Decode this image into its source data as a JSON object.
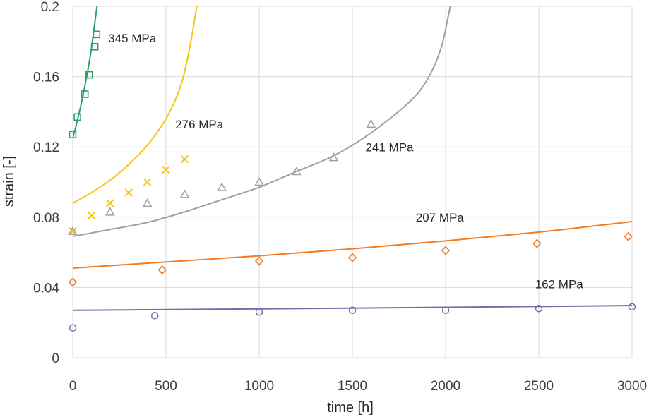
{
  "chart_data": {
    "type": "scatter",
    "title": "",
    "xlabel": "time [h]",
    "ylabel": "strain [-]",
    "xlim": [
      0,
      3000
    ],
    "ylim": [
      0,
      0.2
    ],
    "xticks": [
      0,
      500,
      1000,
      1500,
      2000,
      2500,
      3000
    ],
    "yticks": [
      0,
      0.04,
      0.08,
      0.12,
      0.16,
      0.2
    ],
    "xtick_labels": [
      "0",
      "500",
      "1000",
      "1500",
      "2000",
      "2500",
      "3000"
    ],
    "ytick_labels": [
      "0",
      "0.04",
      "0.08",
      "0.12",
      "0.16",
      "0.2"
    ],
    "grid": true,
    "series": [
      {
        "name": "345 MPa",
        "label": "345 MPa",
        "color": "#2e9e6a",
        "marker": "square",
        "points": [
          [
            0,
            0.127
          ],
          [
            25,
            0.137
          ],
          [
            65,
            0.15
          ],
          [
            88,
            0.161
          ],
          [
            118,
            0.177
          ],
          [
            128,
            0.184
          ]
        ],
        "fit": [
          [
            0,
            0.125
          ],
          [
            20,
            0.133
          ],
          [
            40,
            0.142
          ],
          [
            60,
            0.152
          ],
          [
            80,
            0.163
          ],
          [
            100,
            0.176
          ],
          [
            115,
            0.188
          ],
          [
            130,
            0.2
          ]
        ]
      },
      {
        "name": "276 MPa",
        "label": "276 MPa",
        "color": "#f5c518",
        "marker": "x",
        "points": [
          [
            0,
            0.072
          ],
          [
            100,
            0.081
          ],
          [
            200,
            0.088
          ],
          [
            300,
            0.094
          ],
          [
            400,
            0.1
          ],
          [
            500,
            0.107
          ],
          [
            600,
            0.113
          ]
        ],
        "fit": [
          [
            0,
            0.088
          ],
          [
            100,
            0.094
          ],
          [
            200,
            0.101
          ],
          [
            300,
            0.11
          ],
          [
            400,
            0.121
          ],
          [
            500,
            0.136
          ],
          [
            580,
            0.155
          ],
          [
            630,
            0.178
          ],
          [
            665,
            0.2
          ]
        ]
      },
      {
        "name": "241 MPa",
        "label": "241 MPa",
        "color": "#a0a0a0",
        "marker": "triangle",
        "points": [
          [
            0,
            0.072
          ],
          [
            200,
            0.083
          ],
          [
            400,
            0.088
          ],
          [
            600,
            0.093
          ],
          [
            800,
            0.097
          ],
          [
            1000,
            0.1
          ],
          [
            1200,
            0.106
          ],
          [
            1400,
            0.114
          ],
          [
            1600,
            0.133
          ]
        ],
        "fit": [
          [
            0,
            0.069
          ],
          [
            200,
            0.073
          ],
          [
            400,
            0.077
          ],
          [
            600,
            0.083
          ],
          [
            800,
            0.09
          ],
          [
            1000,
            0.097
          ],
          [
            1200,
            0.106
          ],
          [
            1400,
            0.115
          ],
          [
            1600,
            0.128
          ],
          [
            1800,
            0.145
          ],
          [
            1900,
            0.158
          ],
          [
            1975,
            0.176
          ],
          [
            2025,
            0.2
          ]
        ]
      },
      {
        "name": "207 MPa",
        "label": "207 MPa",
        "color": "#f47b20",
        "marker": "diamond",
        "points": [
          [
            0,
            0.043
          ],
          [
            480,
            0.05
          ],
          [
            1000,
            0.055
          ],
          [
            1500,
            0.057
          ],
          [
            2000,
            0.061
          ],
          [
            2490,
            0.065
          ],
          [
            2980,
            0.069
          ]
        ],
        "fit": [
          [
            0,
            0.051
          ],
          [
            500,
            0.0545
          ],
          [
            1000,
            0.058
          ],
          [
            1500,
            0.062
          ],
          [
            2000,
            0.0665
          ],
          [
            2500,
            0.0715
          ],
          [
            3000,
            0.0775
          ]
        ]
      },
      {
        "name": "162 MPa",
        "label": "162 MPa",
        "color": "#6f6fae",
        "marker": "circle",
        "points": [
          [
            0,
            0.017
          ],
          [
            440,
            0.024
          ],
          [
            1000,
            0.026
          ],
          [
            1500,
            0.027
          ],
          [
            2000,
            0.027
          ],
          [
            2500,
            0.028
          ],
          [
            3000,
            0.029
          ]
        ],
        "fit": [
          [
            0,
            0.027
          ],
          [
            1000,
            0.0278
          ],
          [
            2000,
            0.0287
          ],
          [
            3000,
            0.0297
          ]
        ]
      }
    ],
    "annotations": [
      {
        "text": "345 MPa",
        "x": 190,
        "y": 0.1795
      },
      {
        "text": "276 MPa",
        "x": 550,
        "y": 0.1305
      },
      {
        "text": "241 MPa",
        "x": 1570,
        "y": 0.1175
      },
      {
        "text": "207 MPa",
        "x": 1840,
        "y": 0.0775
      },
      {
        "text": "162 MPa",
        "x": 2480,
        "y": 0.0395
      }
    ]
  }
}
